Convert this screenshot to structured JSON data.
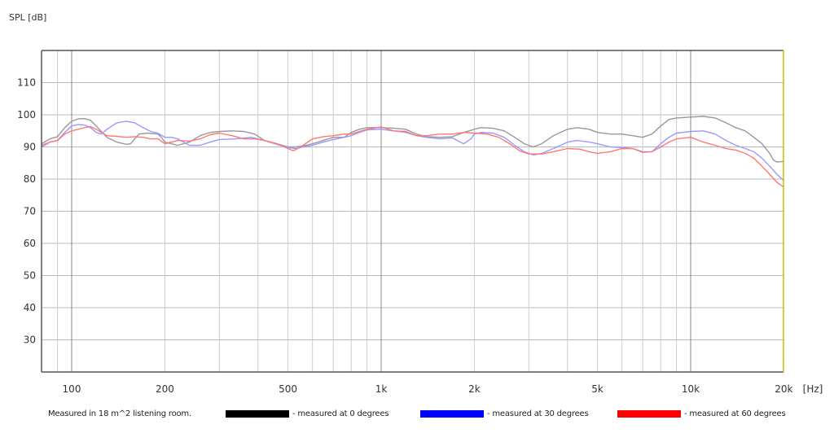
{
  "chart_data": {
    "type": "line",
    "title": "",
    "xlabel": "[Hz]",
    "ylabel": "SPL [dB]",
    "xscale": "log",
    "xlim": [
      80,
      20000
    ],
    "ylim": [
      20,
      120
    ],
    "grid": true,
    "x_ticks": [
      {
        "value": 100,
        "label": "100"
      },
      {
        "value": 200,
        "label": "200"
      },
      {
        "value": 500,
        "label": "500"
      },
      {
        "value": 1000,
        "label": "1k"
      },
      {
        "value": 2000,
        "label": "2k"
      },
      {
        "value": 5000,
        "label": "5k"
      },
      {
        "value": 10000,
        "label": "10k"
      },
      {
        "value": 20000,
        "label": "20k"
      }
    ],
    "x_minor_grid": [
      90,
      300,
      400,
      600,
      700,
      800,
      900,
      3000,
      4000,
      6000,
      7000,
      8000,
      9000
    ],
    "x_major_grid": [
      100,
      1000,
      10000
    ],
    "y_ticks": [
      30,
      40,
      50,
      60,
      70,
      80,
      90,
      100,
      110
    ],
    "legend_position": "bottom",
    "series": [
      {
        "name": "measured at 0 degrees",
        "legend_color": "#000000",
        "line_color": "#999999",
        "points": [
          [
            80,
            91
          ],
          [
            85,
            92.5
          ],
          [
            90,
            93.2
          ],
          [
            95,
            96
          ],
          [
            100,
            98
          ],
          [
            105,
            98.7
          ],
          [
            110,
            98.8
          ],
          [
            115,
            98.3
          ],
          [
            120,
            96.5
          ],
          [
            130,
            93
          ],
          [
            140,
            91.5
          ],
          [
            150,
            90.8
          ],
          [
            155,
            91
          ],
          [
            165,
            94
          ],
          [
            175,
            94.3
          ],
          [
            190,
            94
          ],
          [
            195,
            93
          ],
          [
            200,
            91.5
          ],
          [
            210,
            91
          ],
          [
            220,
            90.5
          ],
          [
            240,
            91.5
          ],
          [
            260,
            93.5
          ],
          [
            280,
            94.5
          ],
          [
            300,
            94.8
          ],
          [
            330,
            95
          ],
          [
            360,
            94.8
          ],
          [
            390,
            94
          ],
          [
            420,
            92
          ],
          [
            460,
            91
          ],
          [
            500,
            90
          ],
          [
            530,
            90
          ],
          [
            560,
            90.3
          ],
          [
            600,
            91
          ],
          [
            650,
            92
          ],
          [
            700,
            93
          ],
          [
            760,
            93
          ],
          [
            800,
            94.5
          ],
          [
            850,
            95.5
          ],
          [
            900,
            96
          ],
          [
            950,
            96
          ],
          [
            1000,
            96
          ],
          [
            1100,
            95.8
          ],
          [
            1200,
            95.5
          ],
          [
            1300,
            94
          ],
          [
            1400,
            93.2
          ],
          [
            1550,
            93
          ],
          [
            1700,
            93.2
          ],
          [
            1850,
            94.5
          ],
          [
            2000,
            95.5
          ],
          [
            2100,
            96
          ],
          [
            2300,
            95.8
          ],
          [
            2500,
            95
          ],
          [
            2700,
            93
          ],
          [
            2900,
            91
          ],
          [
            3100,
            90
          ],
          [
            3300,
            91
          ],
          [
            3600,
            93.5
          ],
          [
            4000,
            95.5
          ],
          [
            4300,
            96
          ],
          [
            4700,
            95.5
          ],
          [
            5000,
            94.5
          ],
          [
            5500,
            94
          ],
          [
            6000,
            94
          ],
          [
            6500,
            93.5
          ],
          [
            7000,
            93
          ],
          [
            7500,
            94
          ],
          [
            8000,
            96.5
          ],
          [
            8500,
            98.5
          ],
          [
            9000,
            99
          ],
          [
            10000,
            99.3
          ],
          [
            11000,
            99.5
          ],
          [
            12000,
            99
          ],
          [
            13000,
            97.5
          ],
          [
            14000,
            96
          ],
          [
            15000,
            95
          ],
          [
            16000,
            93
          ],
          [
            17000,
            91
          ],
          [
            18000,
            88
          ],
          [
            18500,
            86
          ],
          [
            19000,
            85.3
          ],
          [
            20000,
            85.5
          ]
        ]
      },
      {
        "name": "measured at 30 degrees",
        "legend_color": "#0000ff",
        "line_color": "#9999ff",
        "points": [
          [
            80,
            90
          ],
          [
            85,
            91.5
          ],
          [
            90,
            92
          ],
          [
            95,
            94.5
          ],
          [
            100,
            96.5
          ],
          [
            105,
            97
          ],
          [
            110,
            96.8
          ],
          [
            115,
            96
          ],
          [
            120,
            94.5
          ],
          [
            125,
            94
          ],
          [
            130,
            95.5
          ],
          [
            140,
            97.5
          ],
          [
            150,
            98
          ],
          [
            160,
            97.5
          ],
          [
            170,
            96
          ],
          [
            180,
            94.8
          ],
          [
            190,
            94.3
          ],
          [
            200,
            93
          ],
          [
            210,
            93
          ],
          [
            220,
            92.5
          ],
          [
            240,
            90.5
          ],
          [
            260,
            90.5
          ],
          [
            280,
            91.5
          ],
          [
            300,
            92.3
          ],
          [
            340,
            92.5
          ],
          [
            380,
            93
          ],
          [
            420,
            92
          ],
          [
            460,
            90.8
          ],
          [
            500,
            89.8
          ],
          [
            530,
            89.5
          ],
          [
            560,
            90
          ],
          [
            600,
            90.5
          ],
          [
            650,
            91.5
          ],
          [
            700,
            92.3
          ],
          [
            760,
            93
          ],
          [
            800,
            93.5
          ],
          [
            850,
            94.5
          ],
          [
            900,
            95.3
          ],
          [
            1000,
            95.5
          ],
          [
            1100,
            95
          ],
          [
            1200,
            94.5
          ],
          [
            1300,
            93.5
          ],
          [
            1400,
            93
          ],
          [
            1550,
            92.5
          ],
          [
            1700,
            92.8
          ],
          [
            1800,
            91.5
          ],
          [
            1850,
            91
          ],
          [
            1950,
            92.5
          ],
          [
            2000,
            94
          ],
          [
            2100,
            94.5
          ],
          [
            2300,
            94.3
          ],
          [
            2500,
            93
          ],
          [
            2700,
            90.5
          ],
          [
            2900,
            88.5
          ],
          [
            3100,
            87.5
          ],
          [
            3300,
            88
          ],
          [
            3600,
            89.5
          ],
          [
            4000,
            91.5
          ],
          [
            4300,
            92
          ],
          [
            4700,
            91.5
          ],
          [
            5000,
            91
          ],
          [
            5500,
            90
          ],
          [
            6000,
            89.8
          ],
          [
            6500,
            89.5
          ],
          [
            7000,
            88.5
          ],
          [
            7500,
            88.5
          ],
          [
            8000,
            91
          ],
          [
            8500,
            93
          ],
          [
            9000,
            94.3
          ],
          [
            10000,
            94.8
          ],
          [
            11000,
            95
          ],
          [
            12000,
            94
          ],
          [
            13000,
            92
          ],
          [
            14000,
            90.5
          ],
          [
            15000,
            89.5
          ],
          [
            16000,
            88.5
          ],
          [
            17000,
            86.5
          ],
          [
            18000,
            84
          ],
          [
            19000,
            81.5
          ],
          [
            20000,
            79.5
          ]
        ]
      },
      {
        "name": "measured at 60 degrees",
        "legend_color": "#ff0000",
        "line_color": "#ff7777",
        "points": [
          [
            80,
            90.5
          ],
          [
            85,
            91.5
          ],
          [
            90,
            92
          ],
          [
            95,
            94
          ],
          [
            100,
            95
          ],
          [
            105,
            95.5
          ],
          [
            110,
            96
          ],
          [
            115,
            96.3
          ],
          [
            120,
            95.5
          ],
          [
            130,
            93.5
          ],
          [
            140,
            93.3
          ],
          [
            150,
            93
          ],
          [
            160,
            93.2
          ],
          [
            170,
            93
          ],
          [
            180,
            92.5
          ],
          [
            190,
            92.5
          ],
          [
            200,
            91
          ],
          [
            210,
            91.5
          ],
          [
            220,
            92
          ],
          [
            240,
            91.8
          ],
          [
            260,
            92.5
          ],
          [
            280,
            93.8
          ],
          [
            300,
            94.3
          ],
          [
            330,
            93.5
          ],
          [
            360,
            92.5
          ],
          [
            390,
            92.5
          ],
          [
            420,
            92
          ],
          [
            460,
            91
          ],
          [
            500,
            89.5
          ],
          [
            520,
            88.8
          ],
          [
            550,
            90
          ],
          [
            600,
            92.5
          ],
          [
            650,
            93.2
          ],
          [
            700,
            93.5
          ],
          [
            760,
            94
          ],
          [
            800,
            94
          ],
          [
            850,
            94.8
          ],
          [
            900,
            95.5
          ],
          [
            1000,
            96.2
          ],
          [
            1100,
            95
          ],
          [
            1200,
            94.8
          ],
          [
            1300,
            93.5
          ],
          [
            1400,
            93.5
          ],
          [
            1550,
            94
          ],
          [
            1700,
            94
          ],
          [
            1850,
            94.5
          ],
          [
            2000,
            94.3
          ],
          [
            2200,
            94
          ],
          [
            2400,
            93
          ],
          [
            2600,
            91
          ],
          [
            2800,
            88.8
          ],
          [
            3000,
            87.8
          ],
          [
            3300,
            87.8
          ],
          [
            3600,
            88.5
          ],
          [
            4000,
            89.5
          ],
          [
            4400,
            89.3
          ],
          [
            4700,
            88.5
          ],
          [
            5000,
            88
          ],
          [
            5500,
            88.5
          ],
          [
            6000,
            89.5
          ],
          [
            6500,
            89.5
          ],
          [
            7000,
            88.3
          ],
          [
            7500,
            88.5
          ],
          [
            8000,
            90
          ],
          [
            8500,
            91.5
          ],
          [
            9000,
            92.5
          ],
          [
            10000,
            93
          ],
          [
            11000,
            91.5
          ],
          [
            12000,
            90.5
          ],
          [
            13000,
            89.5
          ],
          [
            14000,
            89
          ],
          [
            15000,
            88
          ],
          [
            16000,
            86.5
          ],
          [
            17000,
            84
          ],
          [
            18000,
            81.5
          ],
          [
            19000,
            79
          ],
          [
            20000,
            77.5
          ]
        ]
      }
    ]
  },
  "axis": {
    "y_title": "SPL [dB]",
    "x_unit": "[Hz]"
  },
  "legend": {
    "note": "Measured in 18 m^2  listening room.",
    "items": [
      {
        "label": "- measured at 0 degrees",
        "color": "#000000"
      },
      {
        "label": "- measured at 30 degrees",
        "color": "#0000ff"
      },
      {
        "label": "- measured at 60 degrees",
        "color": "#ff0000"
      }
    ]
  },
  "colors": {
    "frame": "#555555",
    "grid": "#cccccc",
    "major_grid": "#888888",
    "right_border": "#c8c000"
  }
}
